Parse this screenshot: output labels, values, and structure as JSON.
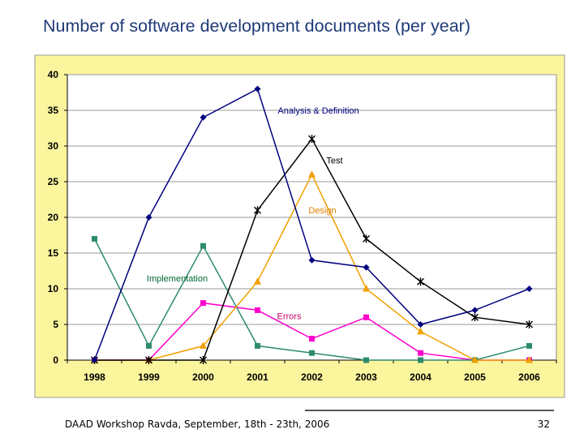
{
  "slide": {
    "title": "Number of software development documents (per year)",
    "footer": "DAAD Workshop Ravda, September, 18th - 23th, 2006",
    "page_number": "32"
  },
  "colors": {
    "chart_background": "#fbf59d",
    "plot_background": "#ffffff",
    "gridline": "#999999"
  },
  "chart_data": {
    "type": "line",
    "title": "Number of software development documents (per year)",
    "xlabel": "",
    "ylabel": "",
    "categories": [
      "1998",
      "1999",
      "2000",
      "2001",
      "2002",
      "2003",
      "2004",
      "2005",
      "2006"
    ],
    "ylim": [
      0,
      40
    ],
    "yticks": [
      0,
      5,
      10,
      15,
      20,
      25,
      30,
      35,
      40
    ],
    "grid": true,
    "legend": "inline labels",
    "series": [
      {
        "name": "Analysis & Definition",
        "color": "#000080",
        "marker": "diamond",
        "label_color": "#000080",
        "values": [
          0,
          20,
          34,
          38,
          14,
          13,
          5,
          7,
          10
        ]
      },
      {
        "name": "Test",
        "color": "#000000",
        "marker": "star",
        "label_color": "#000000",
        "values": [
          0,
          0,
          0,
          21,
          31,
          17,
          11,
          6,
          5
        ]
      },
      {
        "name": "Design",
        "color": "#f0a000",
        "marker": "triangle",
        "label_color": "#e08000",
        "values": [
          0,
          0,
          2,
          11,
          26,
          10,
          4,
          0,
          0
        ]
      },
      {
        "name": "Implementation",
        "color": "#2e8b6e",
        "marker": "square",
        "label_color": "#006633",
        "values": [
          17,
          2,
          16,
          2,
          1,
          0,
          0,
          0,
          2
        ]
      },
      {
        "name": "Errors",
        "color": "#ff00cc",
        "marker": "square",
        "label_color": "#cc0066",
        "values": [
          0,
          0,
          8,
          7,
          3,
          6,
          1,
          0,
          0
        ]
      }
    ]
  }
}
